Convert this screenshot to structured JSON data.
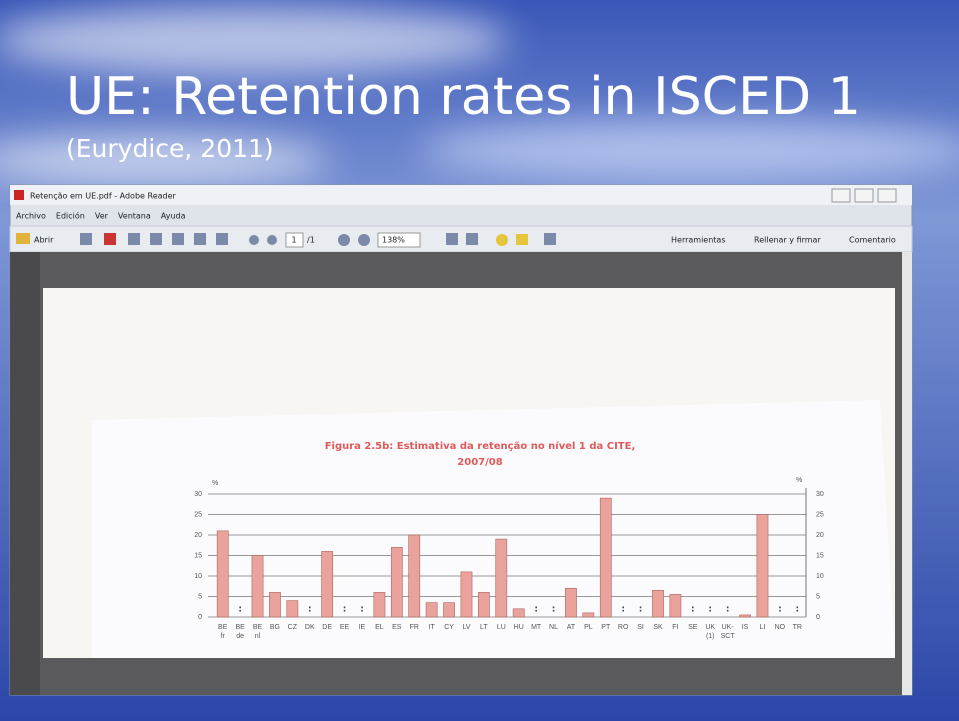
{
  "slide": {
    "title": "UE: Retention rates in ISCED 1",
    "subtitle": "(Eurydice, 2011)"
  },
  "window": {
    "title": "Retenção em UE.pdf - Adobe Reader",
    "menu": [
      "Archivo",
      "Edición",
      "Ver",
      "Ventana",
      "Ayuda"
    ],
    "toolbar": {
      "open": "Abrir",
      "page": "1",
      "pages": "/1",
      "zoom": "138%",
      "tools": "Herramientas",
      "sign": "Rellenar y firmar",
      "comment": "Comentario"
    }
  },
  "chart_data": {
    "type": "bar",
    "title": "Figura 2.5b: Estimativa da retenção no nível 1 da CITE,",
    "subtitle": "2007/08",
    "y_unit": "%",
    "y2_unit": "%",
    "categories": [
      "BE fr",
      "BE de",
      "BE nl",
      "BG",
      "CZ",
      "DK",
      "DE",
      "EE",
      "IE",
      "EL",
      "ES",
      "FR",
      "IT",
      "CY",
      "LV",
      "LT",
      "LU",
      "HU",
      "MT",
      "NL",
      "AT",
      "PL",
      "PT",
      "RO",
      "SI",
      "SK",
      "FI",
      "SE",
      "UK (1)",
      "UK- SCT",
      "IS",
      "LI",
      "NO",
      "TR"
    ],
    "values": [
      21,
      null,
      15,
      6,
      4,
      null,
      16,
      null,
      null,
      6,
      17,
      20,
      3.5,
      3.5,
      11,
      6,
      19,
      2,
      null,
      null,
      7,
      1,
      29,
      null,
      null,
      6.5,
      5.5,
      null,
      null,
      null,
      0.5,
      25,
      null,
      null
    ],
    "value_labels": [
      null,
      ":",
      null,
      null,
      null,
      ":",
      null,
      ":",
      ":",
      null,
      null,
      null,
      null,
      null,
      null,
      null,
      null,
      null,
      ":",
      ":",
      null,
      null,
      null,
      ":",
      ":",
      null,
      null,
      ":",
      ":",
      ":",
      null,
      null,
      ":",
      ":"
    ],
    "color": "#e9a39c",
    "ylim": [
      0,
      30
    ],
    "yticks": [
      0,
      5,
      10,
      15,
      20,
      25,
      30
    ],
    "y2lim": [
      0,
      30
    ],
    "y2ticks": [
      0,
      5,
      10,
      15,
      20,
      25,
      30
    ],
    "grid": true
  }
}
